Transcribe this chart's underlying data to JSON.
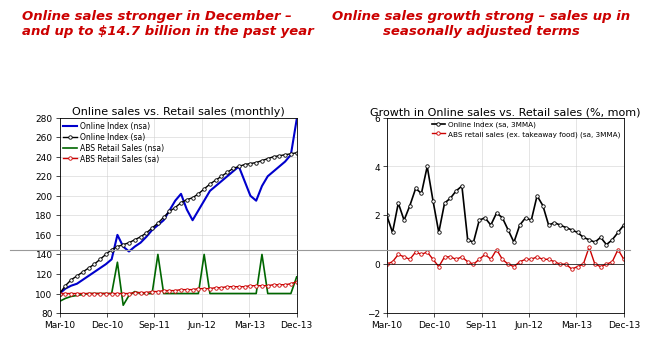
{
  "left_title_line1": "Online sales stronger in December –",
  "left_title_line2": "and up to $14.7 billion in the past year",
  "right_title_line1": "Online sales growth strong – sales up in",
  "right_title_line2": "seasonally adjusted terms",
  "left_subtitle": "Online sales vs. Retail sales (monthly)",
  "right_subtitle": "Growth in Online sales vs. Retail sales (%, mom)",
  "left_ylim": [
    80,
    280
  ],
  "left_yticks": [
    80,
    100,
    120,
    140,
    160,
    180,
    200,
    220,
    240,
    260,
    280
  ],
  "right_ylim": [
    -2,
    6
  ],
  "right_yticks": [
    -2,
    0,
    2,
    4,
    6
  ],
  "xtick_labels": [
    "Mar-10",
    "Dec-10",
    "Sep-11",
    "Jun-12",
    "Mar-13",
    "Dec-13"
  ],
  "title_color": "#cc0000",
  "title_fontsize": 9.5,
  "subtitle_fontsize": 8.0,
  "online_nsa_color": "#0000cc",
  "online_sa_color": "#000000",
  "abs_nsa_color": "#006600",
  "abs_sa_color": "#cc0000",
  "right_online_color": "#000000",
  "right_abs_color": "#cc0000",
  "left_online_nsa": [
    100,
    105,
    108,
    110,
    114,
    118,
    122,
    126,
    130,
    135,
    160,
    148,
    143,
    148,
    152,
    158,
    165,
    170,
    175,
    185,
    195,
    202,
    186,
    175,
    185,
    195,
    205,
    210,
    215,
    220,
    225,
    230,
    215,
    200,
    195,
    210,
    220,
    225,
    230,
    235,
    242,
    278
  ],
  "left_online_sa": [
    100,
    108,
    114,
    118,
    122,
    126,
    130,
    135,
    140,
    145,
    148,
    150,
    152,
    155,
    158,
    162,
    167,
    172,
    178,
    184,
    188,
    193,
    196,
    198,
    202,
    207,
    212,
    216,
    220,
    224,
    228,
    230,
    232,
    233,
    234,
    236,
    238,
    240,
    241,
    242,
    243,
    244
  ],
  "left_abs_nsa": [
    92,
    95,
    97,
    98,
    99,
    100,
    100,
    100,
    100,
    100,
    132,
    88,
    98,
    102,
    100,
    100,
    100,
    140,
    100,
    100,
    100,
    100,
    100,
    100,
    100,
    140,
    100,
    100,
    100,
    100,
    100,
    100,
    100,
    100,
    100,
    140,
    100,
    100,
    100,
    100,
    100,
    117
  ],
  "left_abs_sa": [
    100,
    100,
    100,
    100,
    100,
    100,
    100,
    100,
    100,
    100,
    100,
    100,
    100,
    101,
    101,
    101,
    102,
    102,
    103,
    103,
    103,
    104,
    104,
    104,
    105,
    105,
    105,
    106,
    106,
    107,
    107,
    107,
    107,
    108,
    108,
    108,
    108,
    109,
    109,
    109,
    110,
    112
  ],
  "right_online": [
    2.0,
    1.3,
    2.5,
    1.8,
    2.4,
    3.1,
    2.9,
    4.0,
    2.6,
    1.3,
    2.5,
    2.7,
    3.0,
    3.2,
    1.0,
    0.9,
    1.8,
    1.9,
    1.6,
    2.1,
    1.9,
    1.4,
    0.9,
    1.6,
    1.9,
    1.8,
    2.8,
    2.4,
    1.6,
    1.7,
    1.6,
    1.5,
    1.4,
    1.3,
    1.1,
    1.0,
    0.9,
    1.1,
    0.8,
    1.0,
    1.3,
    1.6
  ],
  "right_abs": [
    0.0,
    0.1,
    0.4,
    0.3,
    0.2,
    0.5,
    0.4,
    0.5,
    0.2,
    -0.1,
    0.3,
    0.3,
    0.2,
    0.3,
    0.1,
    0.0,
    0.2,
    0.4,
    0.2,
    0.6,
    0.2,
    0.0,
    -0.1,
    0.1,
    0.2,
    0.2,
    0.3,
    0.2,
    0.2,
    0.1,
    0.0,
    0.0,
    -0.2,
    -0.1,
    0.0,
    0.7,
    0.0,
    -0.1,
    0.0,
    0.1,
    0.6,
    0.2
  ]
}
